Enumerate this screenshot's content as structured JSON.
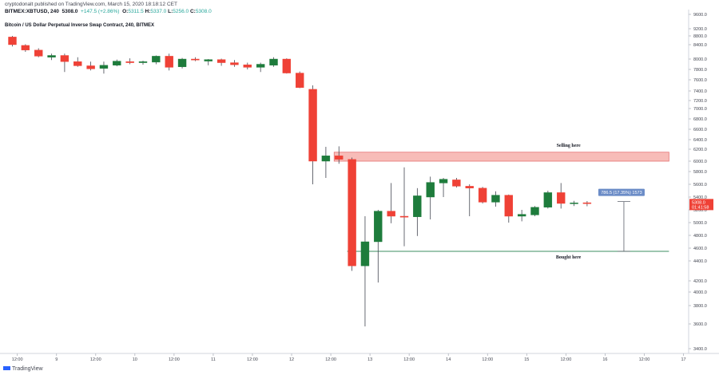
{
  "header": {
    "published_line": "cryptodonalt published on TradingView.com, March 15, 2020 18:18:12 CET",
    "instrument": "BITMEX:XBTUSD, 240",
    "open": "5308.0",
    "change": "+147.5 (+2.86%)",
    "ohlc_o": "5311.5",
    "ohlc_h": "5337.0",
    "ohlc_l": "5256.0",
    "ohlc_c": "5308.0",
    "title": "Bitcoin / US Dollar Perpetual Inverse Swap Contract, 240, BITMEX"
  },
  "footer": {
    "brand": "TradingView"
  },
  "colors": {
    "up": "#1e7c3c",
    "down": "#ef4136",
    "zone": "#f4a6a0",
    "line": "#3d8c60",
    "tag": "#6b8cc7"
  },
  "chart_data": {
    "type": "candlestick",
    "title": "Bitcoin / US Dollar Perpetual Inverse Swap Contract, 240, BITMEX",
    "y_axis": {
      "side": "right",
      "min": 3300,
      "max": 9800,
      "ticks": [
        9600,
        9200,
        8800,
        8400,
        8000,
        7800,
        7600,
        7400,
        7200,
        7000,
        6800,
        6600,
        6400,
        6200,
        6000,
        5800,
        5600,
        5400,
        5200,
        5000,
        4800,
        4600,
        4400,
        4200,
        4000,
        3800,
        3600,
        3400
      ],
      "tick_labels": [
        "9600.0",
        "9200.0",
        "8800.0",
        "8400.0",
        "8000.0",
        "7800.0",
        "7600.0",
        "7400.0",
        "7200.0",
        "7000.0",
        "6800.0",
        "6600.0",
        "6400.0",
        "6200.0",
        "6000.0",
        "5800.0",
        "5600.0",
        "5400.0",
        "5200.0",
        "5000.0",
        "4800.0",
        "4600.0",
        "4400.0",
        "4200.0",
        "4000.0",
        "3800.0",
        "3600.0",
        "3400.0"
      ]
    },
    "x_axis": {
      "ticks": [
        {
          "bar": 0.5,
          "label": "12:00"
        },
        {
          "bar": 3.5,
          "label": "9"
        },
        {
          "bar": 6.5,
          "label": "12:00"
        },
        {
          "bar": 9.5,
          "label": "10"
        },
        {
          "bar": 12.5,
          "label": "12:00"
        },
        {
          "bar": 15.5,
          "label": "11"
        },
        {
          "bar": 18.5,
          "label": "12:00"
        },
        {
          "bar": 21.5,
          "label": "12"
        },
        {
          "bar": 24.5,
          "label": "12:00"
        },
        {
          "bar": 27.5,
          "label": "13"
        },
        {
          "bar": 30.5,
          "label": "12:00"
        },
        {
          "bar": 33.5,
          "label": "14"
        },
        {
          "bar": 36.5,
          "label": "12:00"
        },
        {
          "bar": 39.5,
          "label": "15"
        },
        {
          "bar": 42.5,
          "label": "12:00"
        },
        {
          "bar": 45.5,
          "label": "16"
        },
        {
          "bar": 48.5,
          "label": "12:00"
        },
        {
          "bar": 51.5,
          "label": "17"
        }
      ]
    },
    "candles": [
      {
        "o": 8750,
        "h": 8800,
        "l": 8350,
        "c": 8400
      },
      {
        "o": 8380,
        "h": 8420,
        "l": 8200,
        "c": 8250
      },
      {
        "o": 8250,
        "h": 8300,
        "l": 8050,
        "c": 8080
      },
      {
        "o": 8050,
        "h": 8150,
        "l": 7980,
        "c": 8100
      },
      {
        "o": 8100,
        "h": 8150,
        "l": 7750,
        "c": 7950
      },
      {
        "o": 7950,
        "h": 8050,
        "l": 7850,
        "c": 7870
      },
      {
        "o": 7870,
        "h": 7950,
        "l": 7780,
        "c": 7810
      },
      {
        "o": 7820,
        "h": 7950,
        "l": 7720,
        "c": 7880
      },
      {
        "o": 7880,
        "h": 7990,
        "l": 7860,
        "c": 7960
      },
      {
        "o": 7950,
        "h": 8020,
        "l": 7900,
        "c": 7930
      },
      {
        "o": 7930,
        "h": 7970,
        "l": 7890,
        "c": 7950
      },
      {
        "o": 7940,
        "h": 8100,
        "l": 7900,
        "c": 8080
      },
      {
        "o": 8080,
        "h": 8150,
        "l": 7780,
        "c": 7840
      },
      {
        "o": 7850,
        "h": 8030,
        "l": 7820,
        "c": 8000
      },
      {
        "o": 8000,
        "h": 8050,
        "l": 7960,
        "c": 7980
      },
      {
        "o": 7960,
        "h": 8000,
        "l": 7880,
        "c": 7990
      },
      {
        "o": 7990,
        "h": 8010,
        "l": 7870,
        "c": 7930
      },
      {
        "o": 7930,
        "h": 7980,
        "l": 7850,
        "c": 7890
      },
      {
        "o": 7890,
        "h": 7930,
        "l": 7800,
        "c": 7840
      },
      {
        "o": 7840,
        "h": 7930,
        "l": 7750,
        "c": 7900
      },
      {
        "o": 7880,
        "h": 8050,
        "l": 7850,
        "c": 8000
      },
      {
        "o": 8000,
        "h": 8020,
        "l": 7720,
        "c": 7730
      },
      {
        "o": 7730,
        "h": 7760,
        "l": 7450,
        "c": 7460
      },
      {
        "o": 7430,
        "h": 7500,
        "l": 5600,
        "c": 6000
      },
      {
        "o": 6000,
        "h": 6250,
        "l": 5700,
        "c": 6090
      },
      {
        "o": 6090,
        "h": 6260,
        "l": 5950,
        "c": 6030
      },
      {
        "o": 6030,
        "h": 6060,
        "l": 4300,
        "c": 4350
      },
      {
        "o": 4350,
        "h": 5100,
        "l": 3580,
        "c": 4700
      },
      {
        "o": 4700,
        "h": 5200,
        "l": 4170,
        "c": 5180
      },
      {
        "o": 5180,
        "h": 5620,
        "l": 4990,
        "c": 5100
      },
      {
        "o": 5100,
        "h": 5880,
        "l": 4630,
        "c": 5090
      },
      {
        "o": 5090,
        "h": 5540,
        "l": 4790,
        "c": 5420
      },
      {
        "o": 5400,
        "h": 5720,
        "l": 5050,
        "c": 5630
      },
      {
        "o": 5620,
        "h": 5700,
        "l": 5400,
        "c": 5680
      },
      {
        "o": 5670,
        "h": 5700,
        "l": 5550,
        "c": 5570
      },
      {
        "o": 5570,
        "h": 5600,
        "l": 5100,
        "c": 5540
      },
      {
        "o": 5540,
        "h": 5560,
        "l": 5300,
        "c": 5320
      },
      {
        "o": 5320,
        "h": 5490,
        "l": 5250,
        "c": 5430
      },
      {
        "o": 5430,
        "h": 5440,
        "l": 5000,
        "c": 5100
      },
      {
        "o": 5100,
        "h": 5200,
        "l": 5020,
        "c": 5130
      },
      {
        "o": 5120,
        "h": 5260,
        "l": 5100,
        "c": 5240
      },
      {
        "o": 5240,
        "h": 5500,
        "l": 5220,
        "c": 5470
      },
      {
        "o": 5470,
        "h": 5620,
        "l": 5220,
        "c": 5300
      },
      {
        "o": 5300,
        "h": 5340,
        "l": 5260,
        "c": 5310
      },
      {
        "o": 5311.5,
        "h": 5337,
        "l": 5256,
        "c": 5308
      }
    ],
    "price_tags": [
      {
        "price": 5308,
        "label": "5308.0",
        "sub": "01:41:58",
        "color": "#ef4136"
      }
    ],
    "annotations": {
      "selling_zone": {
        "from_bar": 25,
        "to_bar": 51,
        "y_low": 6000,
        "y_high": 6150,
        "label": "Selling here"
      },
      "buy_line": {
        "from_bar": 26,
        "to_bar": 51,
        "price": 4550,
        "label": "Bought here"
      },
      "measure": {
        "bar": 47,
        "from_price": 4550,
        "to_price": 5330,
        "label": "786.5 (17.35%) 1573"
      }
    }
  }
}
